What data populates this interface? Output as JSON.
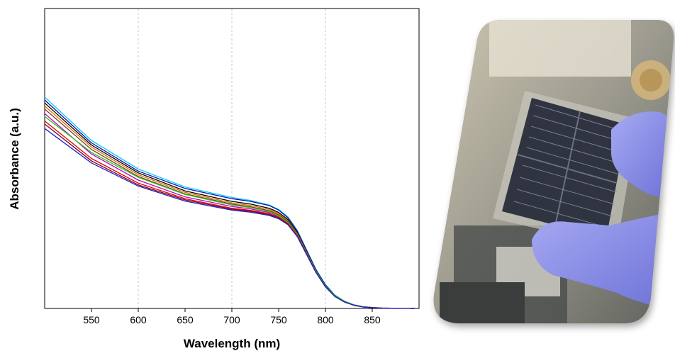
{
  "chart_data": {
    "type": "line",
    "xlabel": "Wavelength (nm)",
    "ylabel": "Absorbance (a.u.)",
    "xlim": [
      500,
      900
    ],
    "ylim": [
      0,
      1
    ],
    "xticks": [
      550,
      600,
      650,
      700,
      750,
      800,
      850
    ],
    "grid": "vertical dashed at 600, 700, 800",
    "legend": "none",
    "x": [
      500,
      550,
      600,
      650,
      700,
      720,
      740,
      750,
      760,
      770,
      780,
      790,
      800,
      810,
      820,
      830,
      840,
      850,
      860,
      870,
      880,
      890,
      895
    ],
    "series": [
      {
        "color": "#00c8ff",
        "values": [
          0.705,
          0.56,
          0.465,
          0.405,
          0.37,
          0.36,
          0.345,
          0.33,
          0.305,
          0.26,
          0.195,
          0.13,
          0.08,
          0.045,
          0.025,
          0.012,
          0.006,
          0.003,
          0.0015,
          0.0008,
          0.0004,
          0.0002,
          0.0001
        ]
      },
      {
        "color": "#1010a0",
        "values": [
          0.695,
          0.552,
          0.458,
          0.4,
          0.366,
          0.357,
          0.343,
          0.328,
          0.302,
          0.257,
          0.192,
          0.128,
          0.078,
          0.044,
          0.024,
          0.012,
          0.006,
          0.003,
          0.0015,
          0.0008,
          0.0004,
          0.0002,
          0.0001
        ]
      },
      {
        "color": "#000000",
        "values": [
          0.685,
          0.545,
          0.452,
          0.392,
          0.357,
          0.348,
          0.334,
          0.32,
          0.296,
          0.252,
          0.188,
          0.125,
          0.076,
          0.043,
          0.024,
          0.011,
          0.005,
          0.0025,
          0.0012,
          0.0006,
          0.0003,
          0.0002,
          0.0001
        ]
      },
      {
        "color": "#e07000",
        "values": [
          0.675,
          0.538,
          0.446,
          0.387,
          0.352,
          0.343,
          0.33,
          0.316,
          0.292,
          0.249,
          0.186,
          0.124,
          0.075,
          0.042,
          0.023,
          0.011,
          0.005,
          0.0025,
          0.0012,
          0.0006,
          0.0003,
          0.0002,
          0.0001
        ]
      },
      {
        "color": "#7a4020",
        "values": [
          0.665,
          0.53,
          0.44,
          0.382,
          0.348,
          0.339,
          0.326,
          0.312,
          0.289,
          0.246,
          0.184,
          0.123,
          0.074,
          0.042,
          0.023,
          0.011,
          0.005,
          0.0025,
          0.0012,
          0.0006,
          0.0003,
          0.0002,
          0.0001
        ]
      },
      {
        "color": "#c000c0",
        "values": [
          0.65,
          0.515,
          0.428,
          0.372,
          0.34,
          0.332,
          0.32,
          0.307,
          0.285,
          0.244,
          0.183,
          0.122,
          0.074,
          0.041,
          0.022,
          0.011,
          0.005,
          0.0025,
          0.0012,
          0.0006,
          0.0003,
          0.0002,
          0.0001
        ]
      },
      {
        "color": "#20d020",
        "values": [
          0.64,
          0.52,
          0.437,
          0.38,
          0.345,
          0.336,
          0.323,
          0.309,
          0.286,
          0.244,
          0.183,
          0.123,
          0.075,
          0.043,
          0.024,
          0.012,
          0.006,
          0.003,
          0.0015,
          0.0008,
          0.0004,
          0.0002,
          0.0001
        ]
      },
      {
        "color": "#e00000",
        "values": [
          0.625,
          0.5,
          0.418,
          0.366,
          0.334,
          0.327,
          0.316,
          0.304,
          0.283,
          0.242,
          0.181,
          0.12,
          0.072,
          0.04,
          0.022,
          0.011,
          0.005,
          0.0025,
          0.0012,
          0.0006,
          0.0003,
          0.0002,
          0.0001
        ]
      },
      {
        "color": "#800020",
        "values": [
          0.615,
          0.492,
          0.412,
          0.362,
          0.331,
          0.324,
          0.313,
          0.301,
          0.28,
          0.24,
          0.18,
          0.12,
          0.072,
          0.04,
          0.022,
          0.011,
          0.005,
          0.0025,
          0.0012,
          0.0006,
          0.0003,
          0.0002,
          0.0001
        ]
      },
      {
        "color": "#2020c8",
        "values": [
          0.6,
          0.485,
          0.408,
          0.358,
          0.328,
          0.321,
          0.31,
          0.299,
          0.279,
          0.239,
          0.179,
          0.119,
          0.072,
          0.04,
          0.022,
          0.011,
          0.005,
          0.0025,
          0.0012,
          0.0006,
          0.0003,
          0.0002,
          0.0001
        ]
      }
    ]
  },
  "photo": {
    "icon": "solar-module-photo-icon",
    "colors": {
      "glove": "#8c8fe8",
      "module": "#2f3440",
      "background": "#b8b2a0",
      "frame": "#c8c6be"
    }
  }
}
